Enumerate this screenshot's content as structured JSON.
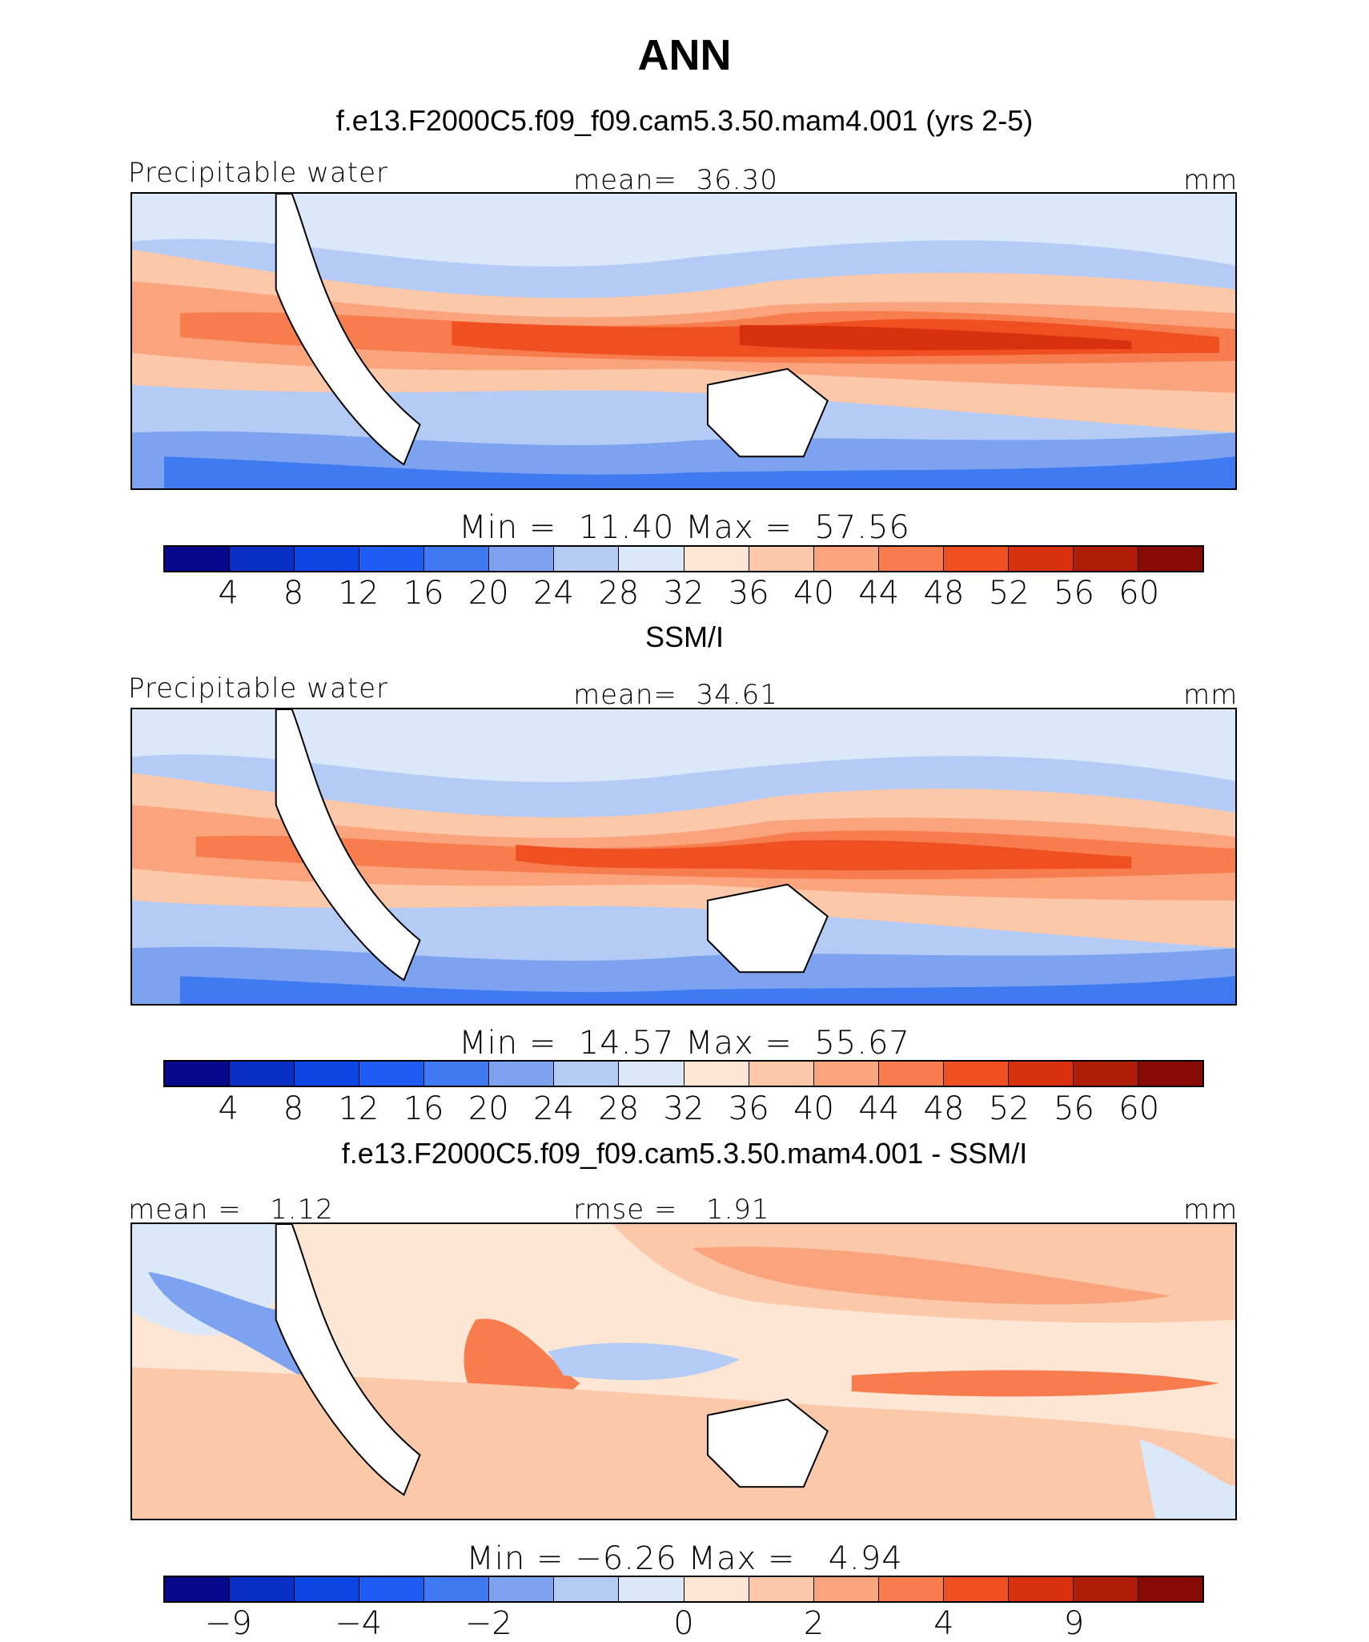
{
  "header": {
    "title": "ANN"
  },
  "panels": [
    {
      "title": "f.e13.F2000C5.f09_f09.cam5.3.50.mam4.001 (yrs 2-5)",
      "left_label": "Precipitable water",
      "center_label": "mean=  36.30",
      "right_label": "mm",
      "minmax": "Min =  11.40 Max =  57.56",
      "tick_labels": [
        "4",
        "8",
        "12",
        "16",
        "20",
        "24",
        "28",
        "32",
        "36",
        "40",
        "44",
        "48",
        "52",
        "56",
        "60"
      ]
    },
    {
      "title": "SSM/I",
      "left_label": "Precipitable water",
      "center_label": "mean=  34.61",
      "right_label": "mm",
      "minmax": "Min =  14.57 Max =  55.67",
      "tick_labels": [
        "4",
        "8",
        "12",
        "16",
        "20",
        "24",
        "28",
        "32",
        "36",
        "40",
        "44",
        "48",
        "52",
        "56",
        "60"
      ]
    },
    {
      "title": "f.e13.F2000C5.f09_f09.cam5.3.50.mam4.001 - SSM/I",
      "left_label": "mean =   1.12",
      "center_label": "rmse =   1.91",
      "right_label": "mm",
      "minmax": "Min = −6.26 Max =   4.94",
      "tick_labels": [
        "−9",
        "−4",
        "−2",
        "0",
        "2",
        "4",
        "9"
      ]
    }
  ],
  "colors": {
    "palette": [
      "#08088a",
      "#0a2fc4",
      "#0c47e6",
      "#1e5cf5",
      "#3f7af2",
      "#7ca2f0",
      "#b3cbf5",
      "#dbe8fa",
      "#fde6d4",
      "#fcc8aa",
      "#f9a47c",
      "#f77c4e",
      "#f04f22",
      "#d9310f",
      "#b01e0a",
      "#870a04"
    ]
  },
  "chart_data": [
    {
      "type": "heatmap",
      "title": "f.e13.F2000C5.f09_f09.cam5.3.50.mam4.001 (yrs 2-5)",
      "variable": "Precipitable water",
      "units": "mm",
      "mean": 36.3,
      "min": 11.4,
      "max": 57.56,
      "contour_levels": [
        4,
        8,
        12,
        16,
        20,
        24,
        28,
        32,
        36,
        40,
        44,
        48,
        52,
        56,
        60
      ]
    },
    {
      "type": "heatmap",
      "title": "SSM/I",
      "variable": "Precipitable water",
      "units": "mm",
      "mean": 34.61,
      "min": 14.57,
      "max": 55.67,
      "contour_levels": [
        4,
        8,
        12,
        16,
        20,
        24,
        28,
        32,
        36,
        40,
        44,
        48,
        52,
        56,
        60
      ]
    },
    {
      "type": "heatmap",
      "title": "f.e13.F2000C5.f09_f09.cam5.3.50.mam4.001 - SSM/I",
      "units": "mm",
      "mean": 1.12,
      "rmse": 1.91,
      "min": -6.26,
      "max": 4.94,
      "tick_labels": [
        -9,
        -4,
        -2,
        0,
        2,
        4,
        9
      ]
    }
  ]
}
